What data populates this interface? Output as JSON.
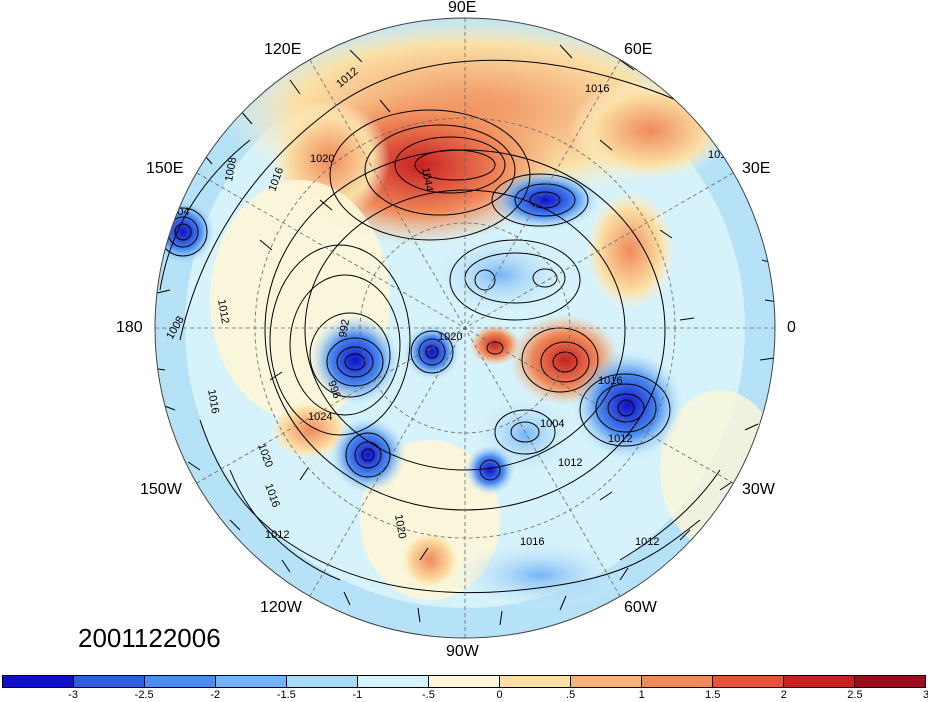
{
  "map": {
    "projection": "polar-stereographic-north",
    "longitude_labels": [
      {
        "id": "90e",
        "text": "90E"
      },
      {
        "id": "60e",
        "text": "60E"
      },
      {
        "id": "120e",
        "text": "120E"
      },
      {
        "id": "30e",
        "text": "30E"
      },
      {
        "id": "150e",
        "text": "150E"
      },
      {
        "id": "0",
        "text": "0"
      },
      {
        "id": "180",
        "text": "180"
      },
      {
        "id": "30w",
        "text": "30W"
      },
      {
        "id": "150w",
        "text": "150W"
      },
      {
        "id": "60w",
        "text": "60W"
      },
      {
        "id": "120w",
        "text": "120W"
      },
      {
        "id": "90w",
        "text": "90W"
      }
    ],
    "isobar_labels": [
      "1004",
      "1008",
      "1012",
      "1016",
      "1020",
      "1024",
      "996",
      "992",
      "1044"
    ],
    "colors": {
      "background": "#ffffff",
      "graticule": "#666666",
      "contour": "#000000"
    }
  },
  "timestamp": "2001122006",
  "colorbar": {
    "colors": [
      "#1010c8",
      "#2e5ee0",
      "#4a8cf0",
      "#74b4f6",
      "#a8dcf6",
      "#d6f2fa",
      "#fdf6d8",
      "#fbe0a6",
      "#f6b47a",
      "#f08a5a",
      "#e8503a",
      "#c82020",
      "#9c0c1c"
    ],
    "labels": [
      "-3",
      "-2.5",
      "-2",
      "-1.5",
      "-1",
      "-.5",
      "0",
      ".5",
      "1",
      "1.5",
      "2",
      "2.5",
      "3"
    ]
  }
}
